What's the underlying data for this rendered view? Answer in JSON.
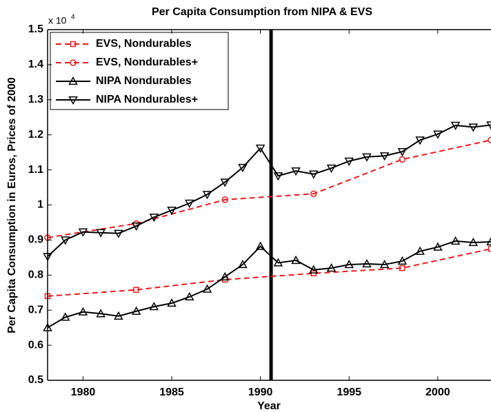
{
  "chart_data": {
    "type": "line",
    "title": "Per Capita Consumption from NIPA & EVS",
    "x_label": "Year",
    "y_label": "Per Capita Consumption in Euros, Prices of 2000",
    "y_multiplier": {
      "base": "x 10",
      "exponent": "4"
    },
    "xlim": [
      1978,
      2003
    ],
    "ylim": [
      0.5,
      1.5
    ],
    "xticks": [
      1980,
      1985,
      1990,
      1995,
      2000
    ],
    "yticks": [
      0.5,
      0.6,
      0.7,
      0.8,
      0.9,
      1,
      1.1,
      1.2,
      1.3,
      1.4,
      1.5
    ],
    "vline": 1990.6,
    "legend": "upper left",
    "series": [
      {
        "name": "EVS, Nondurables",
        "color": "#e8191c",
        "marker": "square",
        "linestyle": "dashed",
        "x": [
          1978,
          1983,
          1988,
          1993,
          1998,
          2003
        ],
        "values": [
          0.74,
          0.758,
          0.787,
          0.805,
          0.82,
          0.875
        ]
      },
      {
        "name": "EVS, Nondurables+",
        "color": "#e8191c",
        "marker": "circle",
        "linestyle": "dashed",
        "x": [
          1978,
          1983,
          1988,
          1993,
          1998,
          2003
        ],
        "values": [
          0.907,
          0.947,
          1.015,
          1.032,
          1.13,
          1.185
        ]
      },
      {
        "name": "NIPA Nondurables",
        "color": "#000000",
        "marker": "triangle-up",
        "linestyle": "solid",
        "x": [
          1978,
          1979,
          1980,
          1981,
          1982,
          1983,
          1984,
          1985,
          1986,
          1987,
          1988,
          1989,
          1990,
          1991,
          1992,
          1993,
          1994,
          1995,
          1996,
          1997,
          1998,
          1999,
          2000,
          2001,
          2002,
          2003
        ],
        "values": [
          0.65,
          0.68,
          0.695,
          0.69,
          0.683,
          0.697,
          0.71,
          0.72,
          0.738,
          0.76,
          0.795,
          0.83,
          0.882,
          0.835,
          0.842,
          0.815,
          0.82,
          0.83,
          0.832,
          0.83,
          0.84,
          0.868,
          0.88,
          0.897,
          0.893,
          0.895
        ]
      },
      {
        "name": "NIPA Nondurables+",
        "color": "#000000",
        "marker": "triangle-down",
        "linestyle": "solid",
        "x": [
          1978,
          1979,
          1980,
          1981,
          1982,
          1983,
          1984,
          1985,
          1986,
          1987,
          1988,
          1989,
          1990,
          1991,
          1992,
          1993,
          1994,
          1995,
          1996,
          1997,
          1998,
          1999,
          2000,
          2001,
          2002,
          2003
        ],
        "values": [
          0.853,
          0.9,
          0.923,
          0.921,
          0.919,
          0.94,
          0.965,
          0.985,
          1.005,
          1.03,
          1.065,
          1.107,
          1.162,
          1.083,
          1.097,
          1.088,
          1.105,
          1.125,
          1.137,
          1.14,
          1.152,
          1.185,
          1.202,
          1.227,
          1.222,
          1.228
        ]
      }
    ]
  }
}
